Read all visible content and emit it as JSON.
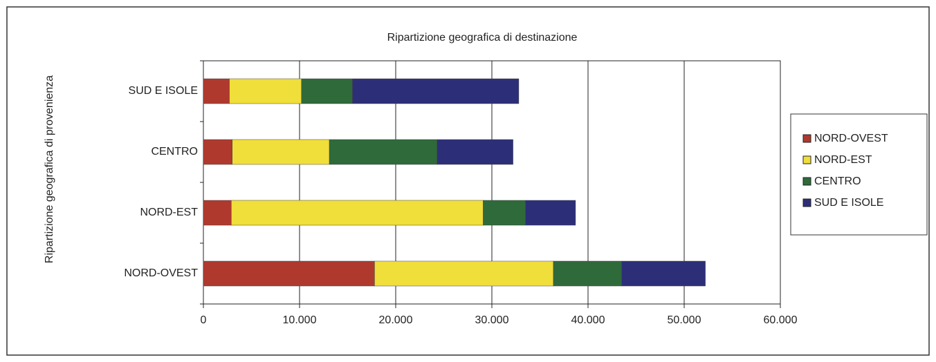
{
  "chart_data": {
    "type": "stacked-hbar",
    "title": "Ripartizione geografica di destinazione",
    "y_label": "Ripartizione geografica di provenienza",
    "categories": [
      "NORD-OVEST",
      "NORD-EST",
      "CENTRO",
      "SUD E ISOLE"
    ],
    "series": [
      {
        "name": "NORD-OVEST",
        "color": "#b0392e",
        "values": [
          17800,
          2900,
          3000,
          2700
        ]
      },
      {
        "name": "NORD-EST",
        "color": "#f0de3a",
        "values": [
          18600,
          26200,
          10100,
          7500
        ]
      },
      {
        "name": "CENTRO",
        "color": "#2f6a3b",
        "values": [
          7100,
          4400,
          11200,
          5300
        ]
      },
      {
        "name": "SUD E ISOLE",
        "color": "#2c2f78",
        "values": [
          8700,
          5200,
          7900,
          17300
        ]
      }
    ],
    "xlim": [
      0,
      60000
    ],
    "xticks": [
      0,
      {
        "value": 10000,
        "label": "10.000"
      },
      {
        "value": 20000,
        "label": "20.000"
      },
      {
        "value": 30000,
        "label": "30.000"
      },
      {
        "value": 40000,
        "label": "40.000"
      },
      {
        "value": 50000,
        "label": "50.000"
      },
      {
        "value": 60000,
        "label": "60.000"
      }
    ],
    "grid": true,
    "legend": "right"
  }
}
